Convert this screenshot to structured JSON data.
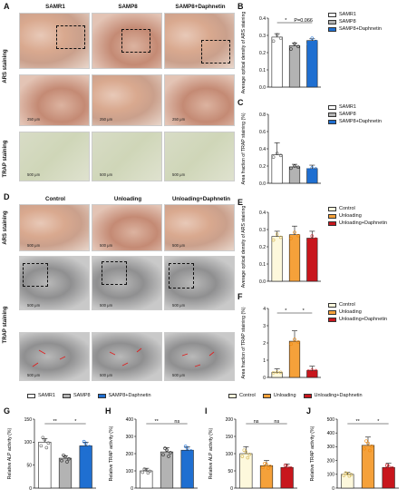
{
  "panels": {
    "A": {
      "label": "A",
      "columns": [
        "SAMR1",
        "SAMP8",
        "SAMP8+Daphnetin"
      ],
      "rows": [
        "ARS staining",
        "TRAP staining"
      ],
      "scale_top": "250 μm",
      "scale_mid": "250 μm",
      "scale_bottom": "500 μm"
    },
    "D": {
      "label": "D",
      "columns": [
        "Control",
        "Unloading",
        "Unloading+Daphnetin"
      ],
      "rows": [
        "ARS staining",
        "TRAP staining"
      ],
      "scale_top": "500 μm",
      "scale_mid": "500 μm",
      "scale_bottom": "500 μm"
    },
    "B": {
      "label": "B"
    },
    "C": {
      "label": "C"
    },
    "E": {
      "label": "E"
    },
    "F": {
      "label": "F"
    },
    "G": {
      "label": "G"
    },
    "H": {
      "label": "H"
    },
    "I": {
      "label": "I"
    },
    "J": {
      "label": "J"
    }
  },
  "legend_samp": {
    "items": [
      "SAMR1",
      "SAMP8",
      "SAMP8+Daphnetin"
    ],
    "colors": [
      "#ffffff",
      "#b3b3b3",
      "#1f6fd1"
    ]
  },
  "legend_unl": {
    "items": [
      "Control",
      "Unloading",
      "Unloading+Daphnetin"
    ],
    "colors": [
      "#fdf8dc",
      "#f5a13a",
      "#c8161d"
    ]
  },
  "chart_data": [
    {
      "id": "B",
      "type": "bar",
      "ylabel": "Average optical density of ARS staining",
      "categories": [
        "SAMR1",
        "SAMP8",
        "SAMP8+Daphnetin"
      ],
      "values": [
        0.29,
        0.24,
        0.27
      ],
      "errors": [
        0.02,
        0.015,
        0.01
      ],
      "ylim": [
        0,
        0.4
      ],
      "yticks": [
        "0.0",
        "0.1",
        "0.2",
        "0.3",
        "0.4"
      ],
      "annotations": [
        "*",
        "P=0.066"
      ]
    },
    {
      "id": "C",
      "type": "bar",
      "ylabel": "Area fraction of TRAP staining (%)",
      "categories": [
        "SAMR1",
        "SAMP8",
        "SAMP8+Daphnetin"
      ],
      "values": [
        0.33,
        0.19,
        0.17
      ],
      "errors": [
        0.14,
        0.03,
        0.04
      ],
      "ylim": [
        0,
        0.8
      ],
      "yticks": [
        "0.0",
        "0.2",
        "0.4",
        "0.6",
        "0.8"
      ]
    },
    {
      "id": "E",
      "type": "bar",
      "ylabel": "Average optical density of ARS staining",
      "categories": [
        "Control",
        "Unloading",
        "Unloading+Daphnetin"
      ],
      "values": [
        0.26,
        0.27,
        0.25
      ],
      "errors": [
        0.03,
        0.05,
        0.04
      ],
      "ylim": [
        0,
        0.4
      ],
      "yticks": [
        "0.0",
        "0.1",
        "0.2",
        "0.3",
        "0.4"
      ]
    },
    {
      "id": "F",
      "type": "bar",
      "ylabel": "Area fraction of TRAP staining (%)",
      "categories": [
        "Control",
        "Unloading",
        "Unloading+Daphnetin"
      ],
      "values": [
        0.3,
        2.1,
        0.4
      ],
      "errors": [
        0.2,
        0.6,
        0.25
      ],
      "ylim": [
        0,
        4
      ],
      "yticks": [
        "0",
        "1",
        "2",
        "3",
        "4"
      ],
      "annotations": [
        "*",
        "*"
      ]
    },
    {
      "id": "G",
      "type": "bar",
      "ylabel": "Relative ALP activity (%)",
      "categories": [
        "SAMR1",
        "SAMP8",
        "SAMP8+Daphnetin"
      ],
      "values": [
        100,
        65,
        92
      ],
      "errors": [
        8,
        5,
        8
      ],
      "ylim": [
        0,
        150
      ],
      "yticks": [
        "0",
        "50",
        "100",
        "150"
      ],
      "annotations": [
        "**",
        "*"
      ]
    },
    {
      "id": "H",
      "type": "bar",
      "ylabel": "Relative TRAP activity (%)",
      "categories": [
        "SAMR1",
        "SAMP8",
        "SAMP8+Daphnetin"
      ],
      "values": [
        100,
        210,
        220
      ],
      "errors": [
        15,
        25,
        20
      ],
      "ylim": [
        0,
        400
      ],
      "yticks": [
        "0",
        "100",
        "200",
        "300",
        "400"
      ],
      "annotations": [
        "**",
        "ns"
      ]
    },
    {
      "id": "I",
      "type": "bar",
      "ylabel": "Relative ALP activity (%)",
      "categories": [
        "Control",
        "Unloading",
        "Unloading+Daphnetin"
      ],
      "values": [
        100,
        65,
        60
      ],
      "errors": [
        20,
        15,
        10
      ],
      "ylim": [
        0,
        200
      ],
      "yticks": [
        "0",
        "50",
        "100",
        "150",
        "200"
      ],
      "annotations": [
        "ns",
        "ns"
      ]
    },
    {
      "id": "J",
      "type": "bar",
      "ylabel": "Relative TRAP activity (%)",
      "categories": [
        "Control",
        "Unloading",
        "Unloading+Daphnetin"
      ],
      "values": [
        100,
        310,
        150
      ],
      "errors": [
        15,
        60,
        30
      ],
      "ylim": [
        0,
        500
      ],
      "yticks": [
        "0",
        "100",
        "200",
        "300",
        "400",
        "500"
      ],
      "annotations": [
        "**",
        "*"
      ]
    }
  ]
}
